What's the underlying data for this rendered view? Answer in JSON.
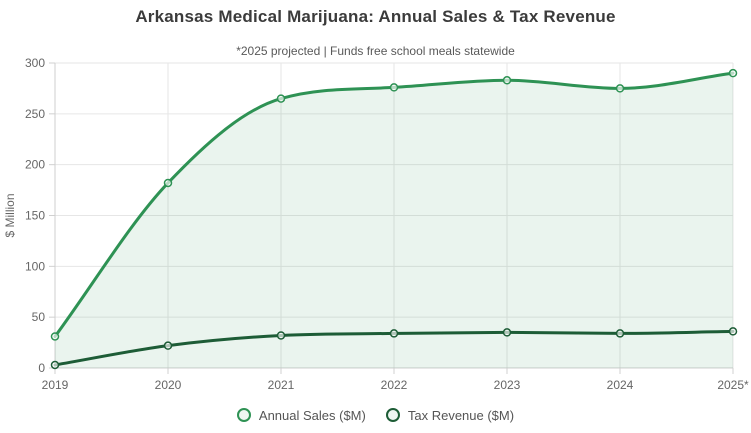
{
  "title": "Arkansas Medical Marijuana: Annual Sales & Tax Revenue",
  "subtitle": "*2025 projected | Funds free school meals statewide",
  "chart_data": {
    "type": "area",
    "title": "Arkansas Medical Marijuana: Annual Sales & Tax Revenue",
    "subtitle": "*2025 projected | Funds free school meals statewide",
    "categories": [
      "2019",
      "2020",
      "2021",
      "2022",
      "2023",
      "2024",
      "2025*"
    ],
    "series": [
      {
        "name": "Annual Sales ($M)",
        "values": [
          31,
          182,
          265,
          276,
          283,
          275,
          290
        ],
        "color": "#2e9254",
        "fill_color": "rgba(46,146,84,0.10)",
        "filled": true
      },
      {
        "name": "Tax Revenue ($M)",
        "values": [
          3,
          22,
          32,
          34,
          35,
          34,
          36
        ],
        "color": "#1d5c36",
        "filled": false
      }
    ],
    "xlabel": "",
    "ylabel": "$ Million",
    "ylim": [
      0,
      300
    ],
    "yticks": [
      0,
      50,
      100,
      150,
      200,
      250,
      300
    ],
    "grid": true,
    "legend_position": "bottom",
    "curve": "smooth"
  }
}
